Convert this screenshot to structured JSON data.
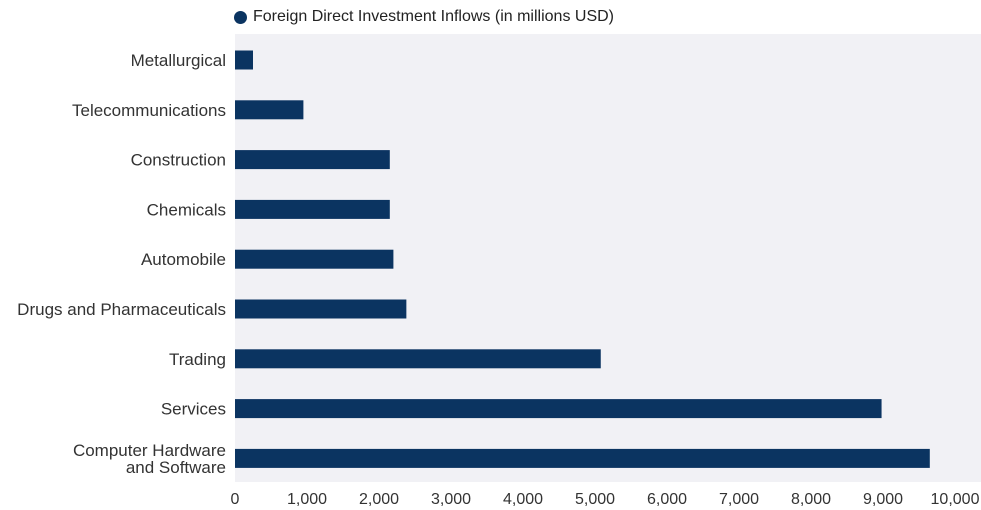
{
  "chart_data": {
    "type": "bar",
    "orientation": "horizontal",
    "categories": [
      "Metallurgical",
      "Telecommunications",
      "Construction",
      "Chemicals",
      "Automobile",
      "Drugs and Pharmaceuticals",
      "Trading",
      "Services",
      "Computer Hardware and Software"
    ],
    "category_lines": [
      [
        "Metallurgical"
      ],
      [
        "Telecommunications"
      ],
      [
        "Construction"
      ],
      [
        "Chemicals"
      ],
      [
        "Automobile"
      ],
      [
        "Drugs and Pharmaceuticals"
      ],
      [
        "Trading"
      ],
      [
        "Services"
      ],
      [
        "Computer Hardware",
        "and Software"
      ]
    ],
    "series": [
      {
        "name": "Foreign Direct Investment Inflows (in millions USD)",
        "values": [
          250,
          950,
          2150,
          2150,
          2200,
          2380,
          5080,
          8980,
          9650
        ]
      }
    ],
    "xlim": [
      0,
      10000
    ],
    "xticks": [
      0,
      1000,
      2000,
      3000,
      4000,
      5000,
      6000,
      7000,
      8000,
      9000,
      10000
    ],
    "xtick_labels": [
      "0",
      "1,000",
      "2,000",
      "3,000",
      "4,000",
      "5,000",
      "6,000",
      "7,000",
      "8,000",
      "9,000",
      "10,000"
    ],
    "legend_position": "top-left",
    "grid": false,
    "colors": {
      "bar": "#0b3461",
      "plot_background": "#f1f1f5"
    }
  }
}
